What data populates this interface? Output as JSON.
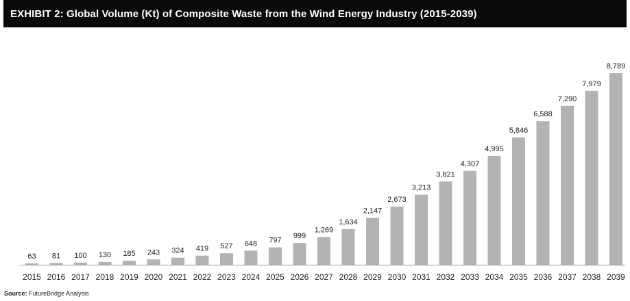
{
  "chart_data": {
    "type": "bar",
    "title": "EXHIBIT 2: Global Volume (Kt) of Composite Waste from the Wind Energy Industry (2015-2039)",
    "categories": [
      "2015",
      "2016",
      "2017",
      "2018",
      "2019",
      "2020",
      "2021",
      "2022",
      "2023",
      "2024",
      "2025",
      "2026",
      "2027",
      "2028",
      "2029",
      "2030",
      "2031",
      "2032",
      "2033",
      "2034",
      "2035",
      "2036",
      "2037",
      "2038",
      "2039"
    ],
    "values": [
      63,
      81,
      100,
      130,
      185,
      243,
      324,
      419,
      527,
      648,
      797,
      999,
      1269,
      1634,
      2147,
      2673,
      3213,
      3821,
      4307,
      4995,
      5846,
      6588,
      7290,
      7979,
      8789
    ],
    "value_labels": [
      "63",
      "81",
      "100",
      "130",
      "185",
      "243",
      "324",
      "419",
      "527",
      "648",
      "797",
      "999",
      "1,269",
      "1,634",
      "2,147",
      "2,673",
      "3,213",
      "3,821",
      "4,307",
      "4,995",
      "5,846",
      "6,588",
      "7,290",
      "7,979",
      "8,789"
    ],
    "xlabel": "",
    "ylabel": "",
    "ylim": [
      0,
      8789
    ],
    "grid": false,
    "bar_color": "#b3b3b3",
    "axis_color": "#9a9a9a"
  },
  "source": {
    "label": "Source:",
    "text": "FutureBridge Analysis"
  }
}
